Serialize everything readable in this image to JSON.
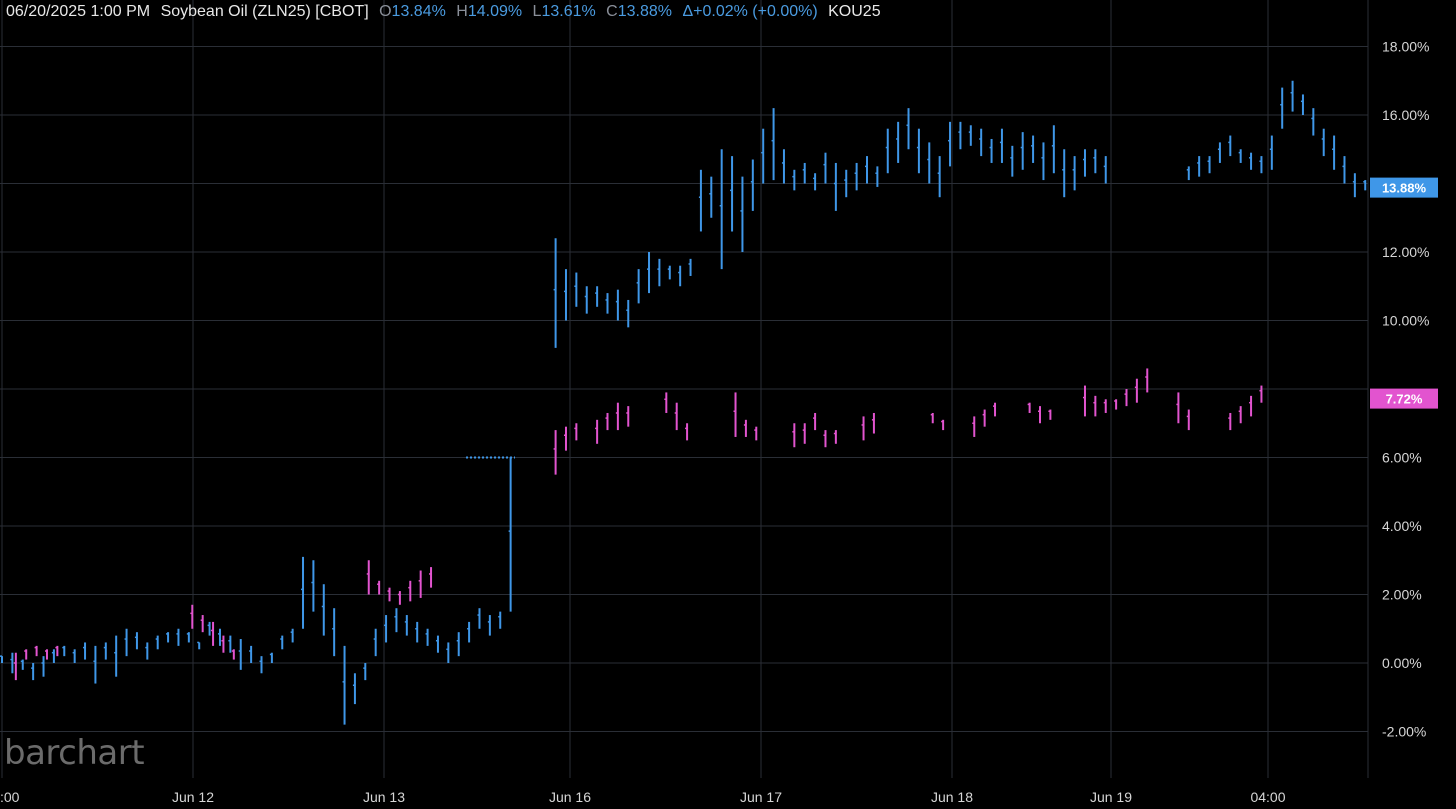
{
  "header": {
    "datetime": "06/20/2025  1:00 PM",
    "symbol": "Soybean Oil (ZLN25) [CBOT]",
    "open_label": "O",
    "open_value": "13.84%",
    "high_label": "H",
    "high_value": "14.09%",
    "low_label": "L",
    "low_value": "13.61%",
    "close_label": "C",
    "close_value": "13.88%",
    "change": "Δ+0.02% (+0.00%)",
    "compare_symbol": "KOU25"
  },
  "logo": {
    "text": "barchart"
  },
  "colors": {
    "background": "#000000",
    "grid": "#2a2e36",
    "series1": "#3f97e8",
    "series2": "#e254cf",
    "axis_text": "#d6d6d6"
  },
  "chart_data": {
    "type": "ohlc",
    "y_unit": "%",
    "ylim": [
      -3.0,
      19.0
    ],
    "y_ticks": [
      "18.00%",
      "16.00%",
      "12.00%",
      "10.00%",
      "6.00%",
      "4.00%",
      "2.00%",
      "0.00%",
      "-2.00%"
    ],
    "x_ticks": [
      ":00",
      "Jun 12",
      "Jun 13",
      "Jun 16",
      "Jun 17",
      "Jun 18",
      "Jun 19",
      "04:00"
    ],
    "last_value_labels": [
      {
        "series": "ZLN25",
        "text": "13.88%",
        "value": 13.88
      },
      {
        "series": "KOU25",
        "text": "7.72%",
        "value": 7.72
      }
    ],
    "series": [
      {
        "name": "ZLN25",
        "color": "#3f97e8",
        "values": [
          [
            0,
            0.0,
            0.2
          ],
          [
            0.15,
            -0.3,
            0.3
          ],
          [
            0.3,
            -0.2,
            0.1
          ],
          [
            0.45,
            -0.5,
            0.0
          ],
          [
            0.6,
            -0.4,
            0.2
          ],
          [
            0.75,
            0.0,
            0.4
          ],
          [
            0.9,
            0.2,
            0.5
          ],
          [
            1.05,
            0.0,
            0.4
          ],
          [
            1.2,
            0.1,
            0.6
          ],
          [
            1.35,
            -0.6,
            0.5
          ],
          [
            1.5,
            0.1,
            0.6
          ],
          [
            1.65,
            -0.4,
            0.8
          ],
          [
            1.8,
            0.2,
            1.0
          ],
          [
            1.95,
            0.4,
            0.9
          ],
          [
            2.1,
            0.1,
            0.6
          ],
          [
            2.25,
            0.4,
            0.8
          ],
          [
            2.4,
            0.6,
            0.9
          ],
          [
            2.55,
            0.5,
            1.0
          ],
          [
            2.7,
            0.6,
            0.9
          ],
          [
            2.85,
            0.4,
            0.6
          ],
          [
            3.0,
            0.8,
            1.2
          ],
          [
            3.15,
            0.5,
            1.0
          ],
          [
            3.3,
            0.3,
            0.8
          ],
          [
            3.45,
            -0.2,
            0.7
          ],
          [
            3.6,
            0.0,
            0.5
          ],
          [
            3.75,
            -0.3,
            0.2
          ],
          [
            3.9,
            0.0,
            0.3
          ],
          [
            4.05,
            0.4,
            0.8
          ],
          [
            4.2,
            0.6,
            1.0
          ],
          [
            4.35,
            1.0,
            3.1
          ],
          [
            4.5,
            1.5,
            3.0
          ],
          [
            4.65,
            0.8,
            2.3
          ],
          [
            4.8,
            0.2,
            1.6
          ],
          [
            4.95,
            -1.8,
            0.5
          ],
          [
            5.1,
            -1.2,
            -0.3
          ],
          [
            5.25,
            -0.5,
            0.0
          ],
          [
            5.4,
            0.2,
            1.0
          ],
          [
            5.55,
            0.6,
            1.4
          ],
          [
            5.7,
            0.9,
            1.6
          ],
          [
            5.85,
            0.8,
            1.4
          ],
          [
            6.0,
            0.6,
            1.2
          ],
          [
            6.15,
            0.5,
            1.0
          ],
          [
            6.3,
            0.3,
            0.8
          ],
          [
            6.45,
            0.0,
            0.6
          ],
          [
            6.6,
            0.2,
            0.9
          ],
          [
            6.75,
            0.6,
            1.2
          ],
          [
            6.9,
            1.0,
            1.6
          ],
          [
            7.05,
            0.8,
            1.4
          ],
          [
            7.2,
            1.0,
            1.5
          ],
          [
            7.35,
            1.5,
            6.0
          ],
          [
            8.0,
            9.2,
            12.4
          ],
          [
            8.15,
            10.0,
            11.5
          ],
          [
            8.3,
            10.4,
            11.4
          ],
          [
            8.45,
            10.2,
            11.0
          ],
          [
            8.6,
            10.4,
            11.0
          ],
          [
            8.75,
            10.2,
            10.8
          ],
          [
            8.9,
            10.0,
            10.9
          ],
          [
            9.05,
            9.8,
            10.6
          ],
          [
            9.2,
            10.5,
            11.5
          ],
          [
            9.35,
            10.8,
            12.0
          ],
          [
            9.5,
            11.0,
            11.8
          ],
          [
            9.65,
            11.2,
            11.6
          ],
          [
            9.8,
            11.0,
            11.6
          ],
          [
            9.95,
            11.3,
            11.8
          ],
          [
            10.1,
            12.6,
            14.4
          ],
          [
            10.25,
            13.0,
            14.2
          ],
          [
            10.4,
            11.5,
            15.0
          ],
          [
            10.55,
            12.6,
            14.8
          ],
          [
            10.7,
            12.0,
            14.2
          ],
          [
            10.85,
            13.2,
            14.7
          ],
          [
            11.0,
            14.0,
            15.6
          ],
          [
            11.15,
            14.1,
            16.2
          ],
          [
            11.3,
            14.0,
            15.0
          ],
          [
            11.45,
            13.8,
            14.4
          ],
          [
            11.6,
            14.0,
            14.6
          ],
          [
            11.75,
            13.8,
            14.3
          ],
          [
            11.9,
            14.0,
            14.9
          ],
          [
            12.05,
            13.2,
            14.6
          ],
          [
            12.2,
            13.6,
            14.4
          ],
          [
            12.35,
            13.8,
            14.6
          ],
          [
            12.5,
            14.0,
            14.8
          ],
          [
            12.65,
            13.9,
            14.5
          ],
          [
            12.8,
            14.3,
            15.6
          ],
          [
            12.95,
            14.6,
            15.8
          ],
          [
            13.1,
            15.0,
            16.2
          ],
          [
            13.25,
            14.3,
            15.6
          ],
          [
            13.4,
            14.0,
            15.2
          ],
          [
            13.55,
            13.6,
            14.8
          ],
          [
            13.7,
            14.5,
            15.8
          ],
          [
            13.85,
            15.0,
            15.8
          ],
          [
            14.0,
            15.1,
            15.7
          ],
          [
            14.15,
            14.8,
            15.6
          ],
          [
            14.3,
            14.6,
            15.3
          ],
          [
            14.45,
            14.6,
            15.6
          ],
          [
            14.6,
            14.2,
            15.1
          ],
          [
            14.75,
            14.4,
            15.5
          ],
          [
            14.9,
            14.6,
            15.4
          ],
          [
            15.05,
            14.1,
            15.2
          ],
          [
            15.2,
            14.3,
            15.7
          ],
          [
            15.35,
            13.6,
            15.0
          ],
          [
            15.5,
            13.8,
            14.8
          ],
          [
            15.65,
            14.2,
            15.0
          ],
          [
            15.8,
            14.3,
            15.0
          ],
          [
            15.95,
            14.0,
            14.8
          ],
          [
            17.15,
            14.1,
            14.5
          ],
          [
            17.3,
            14.2,
            14.8
          ],
          [
            17.45,
            14.3,
            14.8
          ],
          [
            17.6,
            14.6,
            15.2
          ],
          [
            17.75,
            14.8,
            15.4
          ],
          [
            17.9,
            14.6,
            15.0
          ],
          [
            18.05,
            14.4,
            14.9
          ],
          [
            18.2,
            14.3,
            14.8
          ],
          [
            18.35,
            14.4,
            15.4
          ],
          [
            18.5,
            15.6,
            16.8
          ],
          [
            18.65,
            16.1,
            17.0
          ],
          [
            18.8,
            16.0,
            16.6
          ],
          [
            18.95,
            15.4,
            16.2
          ],
          [
            19.1,
            14.8,
            15.6
          ],
          [
            19.25,
            14.4,
            15.4
          ],
          [
            19.4,
            14.0,
            14.8
          ],
          [
            19.55,
            13.6,
            14.3
          ],
          [
            19.7,
            13.8,
            14.1
          ]
        ]
      },
      {
        "name": "KOU25",
        "color": "#e254cf",
        "values": [
          [
            0.2,
            -0.5,
            0.3
          ],
          [
            0.35,
            0.1,
            0.4
          ],
          [
            0.5,
            0.2,
            0.5
          ],
          [
            0.65,
            0.1,
            0.4
          ],
          [
            0.8,
            0.2,
            0.5
          ],
          [
            2.75,
            1.0,
            1.7
          ],
          [
            2.9,
            0.9,
            1.4
          ],
          [
            3.05,
            0.5,
            1.2
          ],
          [
            3.2,
            0.3,
            0.8
          ],
          [
            3.35,
            0.1,
            0.4
          ],
          [
            5.3,
            2.0,
            3.0
          ],
          [
            5.45,
            2.0,
            2.4
          ],
          [
            5.6,
            1.8,
            2.2
          ],
          [
            5.75,
            1.7,
            2.1
          ],
          [
            5.9,
            1.8,
            2.4
          ],
          [
            6.05,
            1.9,
            2.7
          ],
          [
            6.2,
            2.2,
            2.8
          ],
          [
            8.0,
            5.5,
            6.8
          ],
          [
            8.15,
            6.2,
            6.9
          ],
          [
            8.3,
            6.5,
            7.0
          ],
          [
            8.6,
            6.4,
            7.1
          ],
          [
            8.75,
            6.8,
            7.3
          ],
          [
            8.9,
            6.8,
            7.6
          ],
          [
            9.05,
            6.9,
            7.5
          ],
          [
            9.6,
            7.3,
            7.9
          ],
          [
            9.75,
            6.8,
            7.6
          ],
          [
            9.9,
            6.5,
            7.0
          ],
          [
            10.6,
            6.6,
            7.9
          ],
          [
            10.75,
            6.6,
            7.1
          ],
          [
            10.9,
            6.5,
            6.9
          ],
          [
            11.45,
            6.3,
            7.0
          ],
          [
            11.6,
            6.4,
            7.0
          ],
          [
            11.75,
            6.8,
            7.3
          ],
          [
            11.9,
            6.3,
            6.8
          ],
          [
            12.05,
            6.4,
            6.8
          ],
          [
            12.45,
            6.5,
            7.2
          ],
          [
            12.6,
            6.7,
            7.3
          ],
          [
            13.45,
            7.0,
            7.3
          ],
          [
            13.6,
            6.8,
            7.1
          ],
          [
            14.05,
            6.6,
            7.2
          ],
          [
            14.2,
            6.9,
            7.4
          ],
          [
            14.35,
            7.2,
            7.6
          ],
          [
            14.85,
            7.3,
            7.6
          ],
          [
            15.0,
            7.0,
            7.5
          ],
          [
            15.15,
            7.1,
            7.4
          ],
          [
            15.65,
            7.2,
            8.1
          ],
          [
            15.8,
            7.2,
            7.8
          ],
          [
            15.95,
            7.3,
            7.7
          ],
          [
            16.1,
            7.4,
            7.7
          ],
          [
            16.25,
            7.5,
            8.0
          ],
          [
            16.4,
            7.6,
            8.3
          ],
          [
            16.55,
            7.9,
            8.6
          ],
          [
            17.0,
            7.0,
            7.9
          ],
          [
            17.15,
            6.8,
            7.4
          ],
          [
            17.75,
            6.8,
            7.3
          ],
          [
            17.9,
            7.0,
            7.5
          ],
          [
            18.05,
            7.2,
            7.8
          ],
          [
            18.2,
            7.6,
            8.1
          ]
        ]
      }
    ]
  }
}
